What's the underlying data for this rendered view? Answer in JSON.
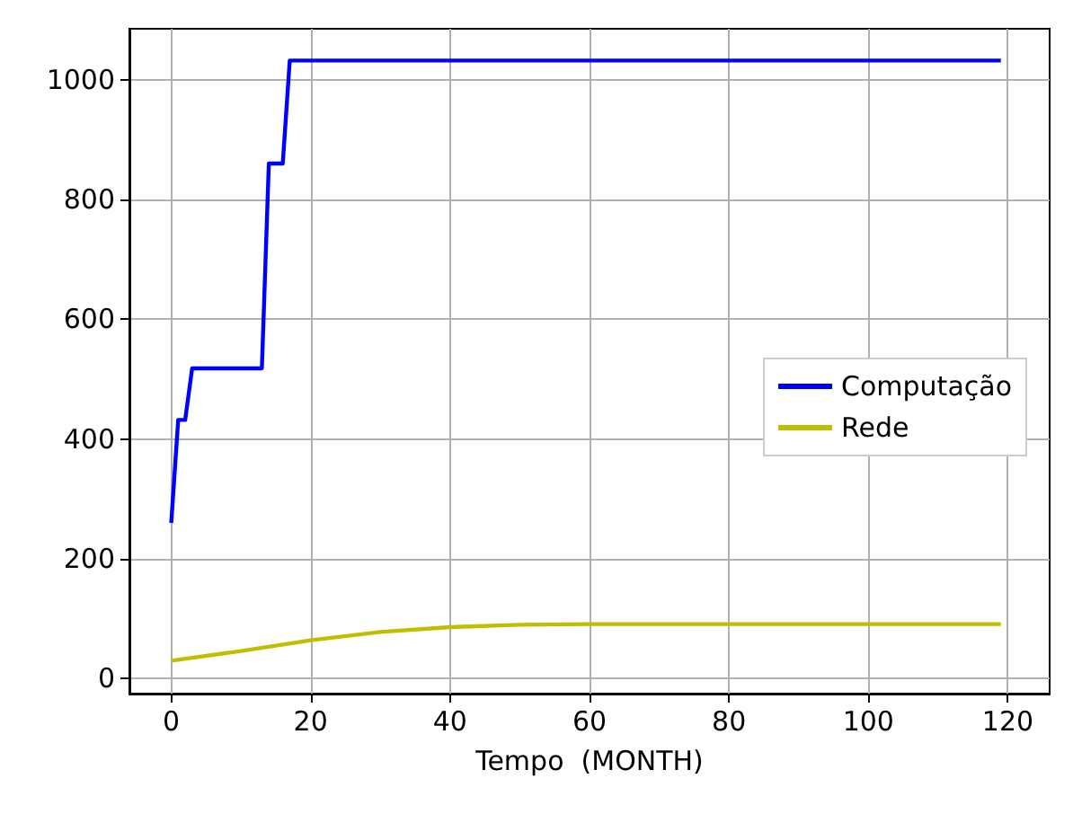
{
  "chart_data": {
    "type": "line",
    "xlabel": "Tempo  (MONTH)",
    "xlim": [
      -6,
      126
    ],
    "xticks": [
      0,
      20,
      40,
      60,
      80,
      100,
      120
    ],
    "ylim": [
      -25,
      1085
    ],
    "yticks": [
      0,
      200,
      400,
      600,
      800,
      1000
    ],
    "grid": true,
    "legend": "center right",
    "line_style": "solid",
    "marker": "none",
    "series": [
      {
        "name": "Computação",
        "color": "#0000ff",
        "x": [
          0,
          1,
          2,
          3,
          13,
          14,
          15,
          16,
          17,
          119
        ],
        "values": [
          260,
          432,
          432,
          518,
          518,
          860,
          860,
          860,
          1032,
          1032
        ]
      },
      {
        "name": "Rede",
        "color": "#bfbf00",
        "x": [
          0,
          10,
          20,
          30,
          40,
          50,
          60,
          80,
          100,
          119
        ],
        "values": [
          30,
          46,
          64,
          78,
          86,
          90,
          91,
          91,
          91,
          91
        ]
      }
    ]
  }
}
